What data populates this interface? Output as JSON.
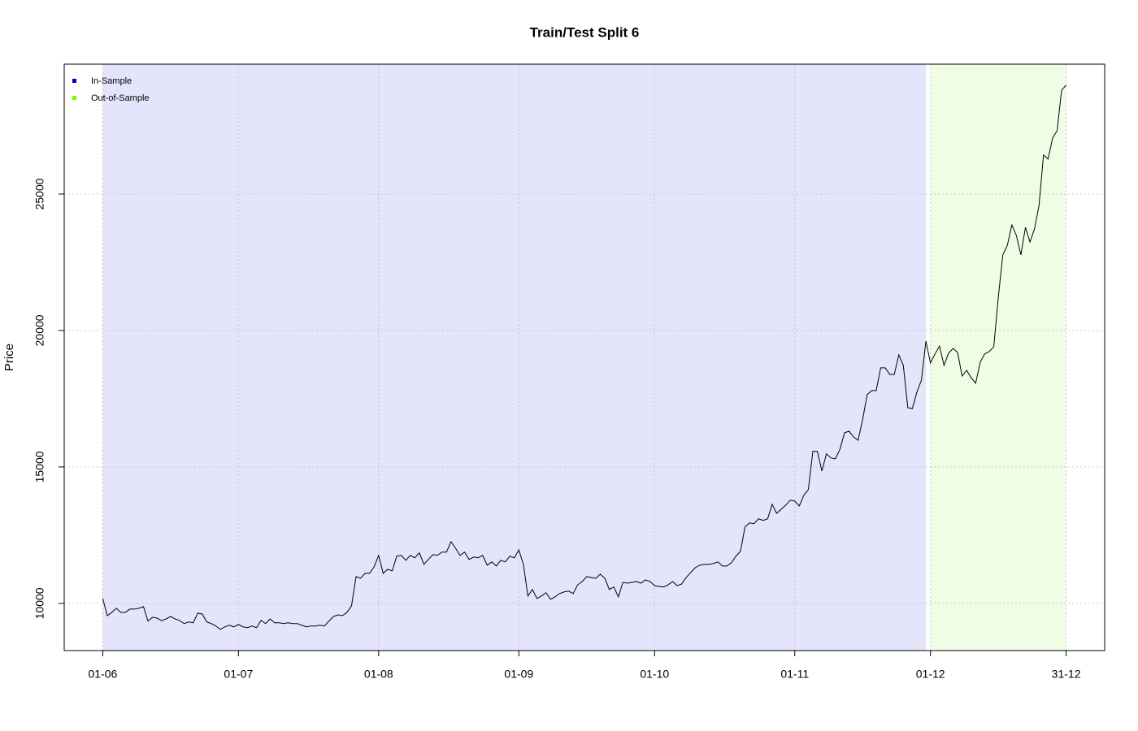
{
  "chart_data": {
    "type": "line",
    "title": "Train/Test Split 6",
    "y_label": "Price",
    "x": [
      "01-06",
      "02-06",
      "03-06",
      "04-06",
      "05-06",
      "06-06",
      "07-06",
      "08-06",
      "09-06",
      "10-06",
      "11-06",
      "12-06",
      "13-06",
      "14-06",
      "15-06",
      "16-06",
      "17-06",
      "18-06",
      "19-06",
      "20-06",
      "21-06",
      "22-06",
      "23-06",
      "24-06",
      "25-06",
      "26-06",
      "27-06",
      "28-06",
      "29-06",
      "30-06",
      "01-07",
      "02-07",
      "03-07",
      "04-07",
      "05-07",
      "06-07",
      "07-07",
      "08-07",
      "09-07",
      "10-07",
      "11-07",
      "12-07",
      "13-07",
      "14-07",
      "15-07",
      "16-07",
      "17-07",
      "18-07",
      "19-07",
      "20-07",
      "21-07",
      "22-07",
      "23-07",
      "24-07",
      "25-07",
      "26-07",
      "27-07",
      "28-07",
      "29-07",
      "30-07",
      "31-07",
      "01-08",
      "02-08",
      "03-08",
      "04-08",
      "05-08",
      "06-08",
      "07-08",
      "08-08",
      "09-08",
      "10-08",
      "11-08",
      "12-08",
      "13-08",
      "14-08",
      "15-08",
      "16-08",
      "17-08",
      "18-08",
      "19-08",
      "20-08",
      "21-08",
      "22-08",
      "23-08",
      "24-08",
      "25-08",
      "26-08",
      "27-08",
      "28-08",
      "29-08",
      "30-08",
      "31-08",
      "01-09",
      "02-09",
      "03-09",
      "04-09",
      "05-09",
      "06-09",
      "07-09",
      "08-09",
      "09-09",
      "10-09",
      "11-09",
      "12-09",
      "13-09",
      "14-09",
      "15-09",
      "16-09",
      "17-09",
      "18-09",
      "19-09",
      "20-09",
      "21-09",
      "22-09",
      "23-09",
      "24-09",
      "25-09",
      "26-09",
      "27-09",
      "28-09",
      "29-09",
      "30-09",
      "01-10",
      "02-10",
      "03-10",
      "04-10",
      "05-10",
      "06-10",
      "07-10",
      "08-10",
      "09-10",
      "10-10",
      "11-10",
      "12-10",
      "13-10",
      "14-10",
      "15-10",
      "16-10",
      "17-10",
      "18-10",
      "19-10",
      "20-10",
      "21-10",
      "22-10",
      "23-10",
      "24-10",
      "25-10",
      "26-10",
      "27-10",
      "28-10",
      "29-10",
      "30-10",
      "31-10",
      "01-11",
      "02-11",
      "03-11",
      "04-11",
      "05-11",
      "06-11",
      "07-11",
      "08-11",
      "09-11",
      "10-11",
      "11-11",
      "12-11",
      "13-11",
      "14-11",
      "15-11",
      "16-11",
      "17-11",
      "18-11",
      "19-11",
      "20-11",
      "21-11",
      "22-11",
      "23-11",
      "24-11",
      "25-11",
      "26-11",
      "27-11",
      "28-11",
      "29-11",
      "30-11",
      "01-12",
      "02-12",
      "03-12",
      "04-12",
      "05-12",
      "06-12",
      "07-12",
      "08-12",
      "09-12",
      "10-12",
      "11-12",
      "12-12",
      "13-12",
      "14-12",
      "15-12",
      "16-12",
      "17-12",
      "18-12",
      "19-12",
      "20-12",
      "21-12",
      "22-12",
      "23-12",
      "24-12",
      "25-12",
      "26-12",
      "27-12",
      "28-12",
      "29-12",
      "30-12",
      "31-12"
    ],
    "values": [
      10180,
      9550,
      9670,
      9820,
      9670,
      9670,
      9790,
      9790,
      9820,
      9880,
      9350,
      9490,
      9460,
      9370,
      9430,
      9520,
      9430,
      9370,
      9260,
      9320,
      9290,
      9640,
      9610,
      9320,
      9260,
      9170,
      9050,
      9140,
      9200,
      9140,
      9230,
      9140,
      9110,
      9170,
      9110,
      9380,
      9260,
      9430,
      9290,
      9290,
      9260,
      9290,
      9260,
      9260,
      9200,
      9140,
      9170,
      9170,
      9200,
      9170,
      9350,
      9520,
      9580,
      9550,
      9670,
      9910,
      10980,
      10920,
      11100,
      11100,
      11340,
      11760,
      11100,
      11250,
      11190,
      11730,
      11760,
      11580,
      11760,
      11670,
      11850,
      11430,
      11610,
      11790,
      11760,
      11880,
      11880,
      12260,
      12020,
      11760,
      11880,
      11610,
      11700,
      11670,
      11760,
      11400,
      11520,
      11370,
      11580,
      11520,
      11730,
      11670,
      11960,
      11430,
      10270,
      10510,
      10180,
      10270,
      10390,
      10150,
      10240,
      10360,
      10420,
      10450,
      10360,
      10680,
      10800,
      10980,
      10950,
      10920,
      11070,
      10920,
      10510,
      10600,
      10240,
      10770,
      10740,
      10770,
      10800,
      10740,
      10860,
      10800,
      10650,
      10620,
      10600,
      10680,
      10800,
      10650,
      10710,
      10950,
      11130,
      11310,
      11400,
      11430,
      11430,
      11460,
      11520,
      11370,
      11370,
      11490,
      11730,
      11910,
      12800,
      12950,
      12920,
      13100,
      13040,
      13100,
      13630,
      13300,
      13450,
      13600,
      13780,
      13750,
      13570,
      13960,
      14170,
      15570,
      15570,
      14850,
      15480,
      15330,
      15300,
      15650,
      16250,
      16310,
      16100,
      15980,
      16730,
      17650,
      17800,
      17800,
      18630,
      18630,
      18390,
      18390,
      19110,
      18720,
      17170,
      17140,
      17740,
      18180,
      19610,
      18810,
      19140,
      19430,
      18720,
      19170,
      19340,
      19200,
      18330,
      18540,
      18270,
      18070,
      18840,
      19140,
      19230,
      19400,
      21220,
      22770,
      23120,
      23870,
      23480,
      22770,
      23780,
      23240,
      23720,
      24580,
      26430,
      26280,
      27050,
      27320,
      28810,
      28990
    ],
    "color": "#000000",
    "regions": [
      {
        "name": "In-Sample",
        "color": "#0000cd",
        "fill": "#e4e4fb",
        "start": "01-06",
        "end": "30-11"
      },
      {
        "name": "Out-of-Sample",
        "color": "#7cfc00",
        "fill": "#f0fde5",
        "start": "01-12",
        "end": "31-12"
      }
    ],
    "legend": "topleft",
    "ylim": [
      8270,
      29760
    ],
    "yticks": [
      10000,
      15000,
      20000,
      25000
    ],
    "xticks": [
      "01-06",
      "01-07",
      "01-08",
      "01-09",
      "01-10",
      "01-11",
      "01-12",
      "31-12"
    ],
    "grid": true
  }
}
